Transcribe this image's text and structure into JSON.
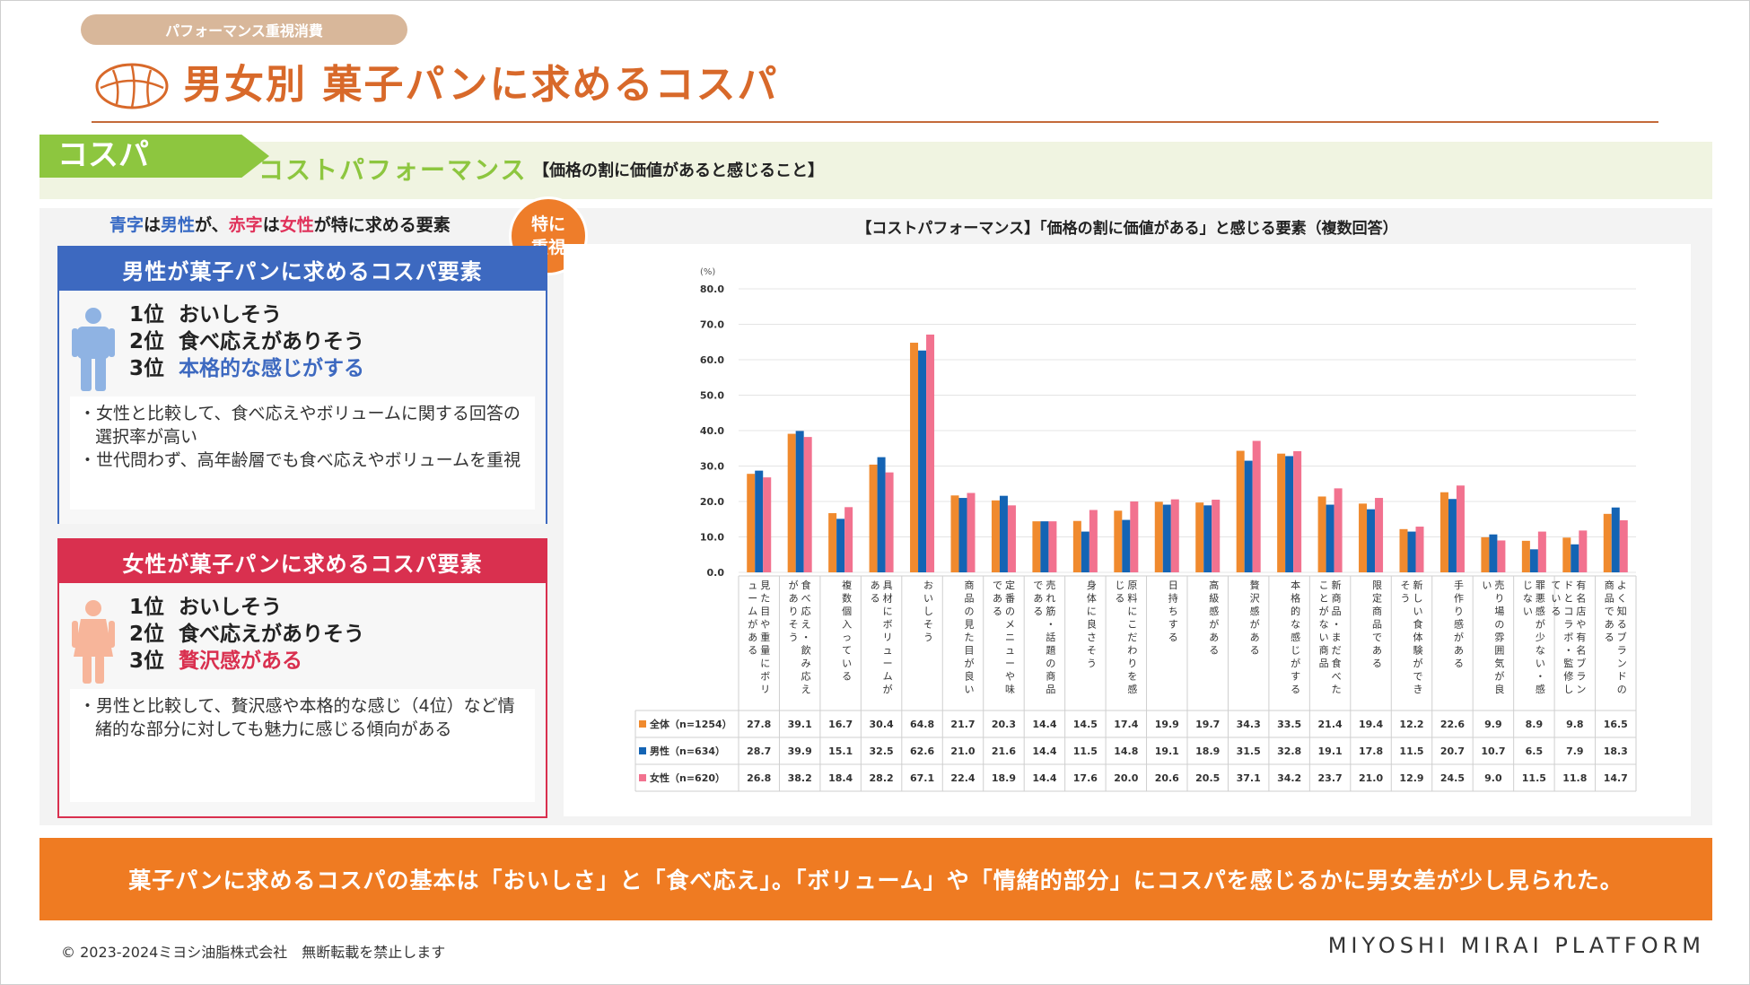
{
  "header": {
    "tag": "パフォーマンス重視消費",
    "title": "男女別 菓子パンに求めるコスパ"
  },
  "cospa": {
    "label": "コスパ",
    "word": "コストパフォーマンス",
    "description": "【価格の割に価値があると感じること】"
  },
  "legend_note": {
    "blue": "青字",
    "t1": "は",
    "male": "男性",
    "t2": "が、",
    "red": "赤字",
    "t3": "は",
    "female": "女性",
    "t4": "が特に求める要素"
  },
  "badge": {
    "line1": "特に",
    "line2": "重視"
  },
  "male_card": {
    "title": "男性が菓子パンに求めるコスパ要素",
    "ranks": [
      {
        "rank": "1位",
        "label": "おいしそう"
      },
      {
        "rank": "2位",
        "label": "食べ応えがありそう"
      },
      {
        "rank": "3位",
        "label": "本格的な感じがする"
      }
    ],
    "notes": [
      "・女性と比較して、食べ応えやボリュームに関する回答の選択率が高い",
      "・世代問わず、高年齢層でも食べ応えやボリュームを重視"
    ]
  },
  "female_card": {
    "title": "女性が菓子パンに求めるコスパ要素",
    "ranks": [
      {
        "rank": "1位",
        "label": "おいしそう"
      },
      {
        "rank": "2位",
        "label": "食べ応えがありそう"
      },
      {
        "rank": "3位",
        "label": "贅沢感がある"
      }
    ],
    "notes": [
      "・男性と比較して、贅沢感や本格的な感じ（4位）など情緒的な部分に対しても魅力に感じる傾向がある"
    ]
  },
  "chart_data": {
    "type": "bar",
    "title": "【コストパフォーマンス】「価格の割に価値がある」と感じる要素（複数回答）",
    "ylabel": "(%)",
    "ylim": [
      0,
      80
    ],
    "yticks": [
      "0.0",
      "10.0",
      "20.0",
      "30.0",
      "40.0",
      "50.0",
      "60.0",
      "70.0",
      "80.0"
    ],
    "categories": [
      "見た目や重量にボリュームがある",
      "食べ応え・飲み応えがありそう",
      "複数個入っている",
      "具材にボリュームがある",
      "おいしそう",
      "商品の見た目が良い",
      "定番のメニューや味である",
      "売れ筋・話題の商品である",
      "身体に良さそう",
      "原料にこだわりを感じる",
      "日持ちする",
      "高級感がある",
      "贅沢感がある",
      "本格的な感じがする",
      "新商品・まだ食べたことがない商品",
      "限定商品である",
      "新しい食体験ができそう",
      "手作り感がある",
      "売り場の雰囲気が良い",
      "罪悪感が少ない・感じない",
      "有名店や有名ブランドとコラボ・監修している",
      "よく知るブランドの商品である"
    ],
    "series": [
      {
        "name": "全体（n=1254）",
        "color": "#f08a2e",
        "values": [
          27.8,
          39.1,
          16.7,
          30.4,
          64.8,
          21.7,
          20.3,
          14.4,
          14.5,
          17.4,
          19.9,
          19.7,
          34.3,
          33.5,
          21.4,
          19.4,
          12.2,
          22.6,
          9.9,
          8.9,
          9.8,
          16.5
        ]
      },
      {
        "name": "男性（n=634）",
        "color": "#1464b4",
        "values": [
          28.7,
          39.9,
          15.1,
          32.5,
          62.6,
          21.0,
          21.6,
          14.4,
          11.5,
          14.8,
          19.1,
          18.9,
          31.5,
          32.8,
          19.1,
          17.8,
          11.5,
          20.7,
          10.7,
          6.5,
          7.9,
          18.3
        ]
      },
      {
        "name": "女性（n=620）",
        "color": "#f2728f",
        "values": [
          26.8,
          38.2,
          18.4,
          28.2,
          67.1,
          22.4,
          18.9,
          14.4,
          17.6,
          20.0,
          20.6,
          20.5,
          37.1,
          34.2,
          23.7,
          21.0,
          12.9,
          24.5,
          9.0,
          11.5,
          11.8,
          14.7
        ]
      }
    ],
    "grid": true,
    "data_table": true
  },
  "conclusion": "菓子パンに求めるコスパの基本は「おいしさ」と「食べ応え」。「ボリューム」や「情緒的部分」にコスパを感じるかに男女差が少し見られた。",
  "footer": {
    "copyright": "© 2023-2024ミヨシ油脂株式会社　無断転載を禁止します",
    "brand": "MIYOSHI MIRAI PLATFORM"
  }
}
